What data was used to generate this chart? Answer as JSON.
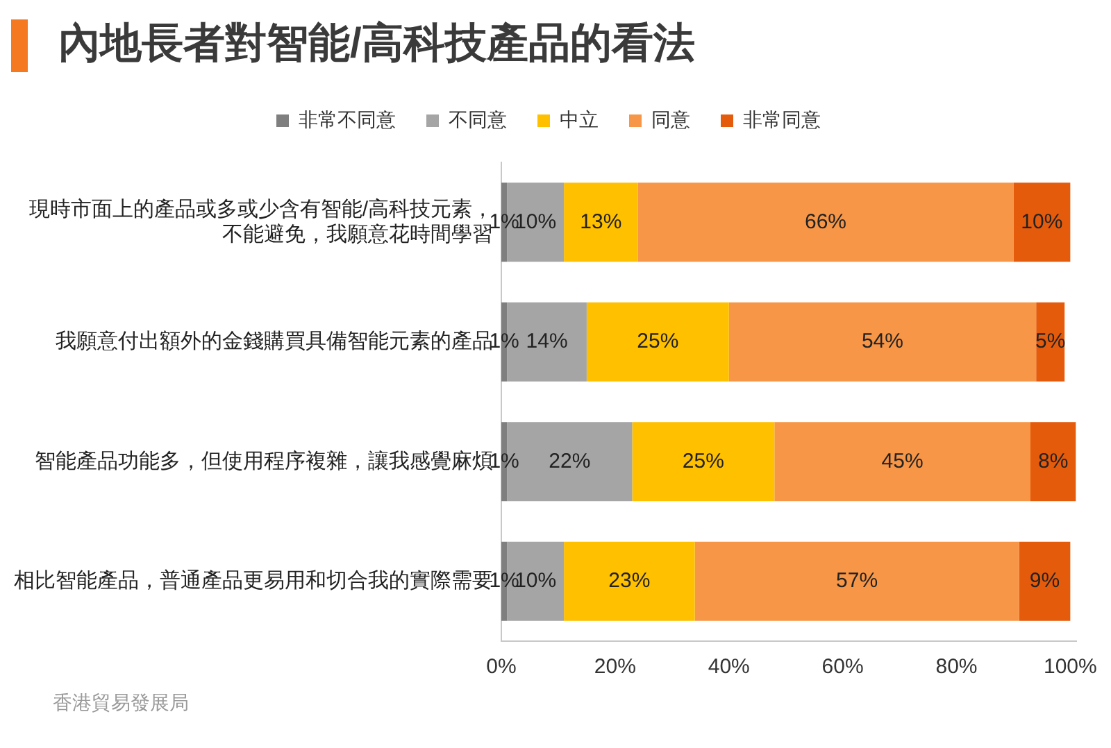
{
  "chart_data": {
    "type": "bar",
    "orientation": "horizontal",
    "stacked": true,
    "title": "內地長者對智能/高科技產品的看法",
    "categories": [
      "現時市面上的產品或多或少含有智能/高科技元素，不能避免，我願意花時間學習",
      "我願意付出額外的金錢購買具備智能元素的產品",
      "智能產品功能多，但使用程序複雜，讓我感覺麻煩",
      "相比智能產品，普通產品更易用和切合我的實際需要"
    ],
    "series": [
      {
        "name": "非常不同意",
        "color": "#7f7f7f",
        "values": [
          1,
          1,
          1,
          1
        ],
        "value_labels": [
          "1%",
          "1%",
          "1%",
          "1%"
        ]
      },
      {
        "name": "不同意",
        "color": "#a5a5a5",
        "values": [
          10,
          14,
          22,
          10
        ],
        "value_labels": [
          "10%",
          "14%",
          "22%",
          "10%"
        ]
      },
      {
        "name": "中立",
        "color": "#ffc000",
        "values": [
          13,
          25,
          25,
          23
        ],
        "value_labels": [
          "13%",
          "25%",
          "25%",
          "23%"
        ]
      },
      {
        "name": "同意",
        "color": "#f79646",
        "values": [
          66,
          54,
          45,
          57
        ],
        "value_labels": [
          "66%",
          "54%",
          "45%",
          "57%"
        ]
      },
      {
        "name": "非常同意",
        "color": "#e55b0c",
        "values": [
          10,
          5,
          8,
          9
        ],
        "value_labels": [
          "10%",
          "5%",
          "8%",
          "9%"
        ]
      }
    ],
    "xlim": [
      0,
      101
    ],
    "xticks": [
      {
        "value": 0,
        "label": "0%"
      },
      {
        "value": 20,
        "label": "20%"
      },
      {
        "value": 40,
        "label": "40%"
      },
      {
        "value": 60,
        "label": "60%"
      },
      {
        "value": 80,
        "label": "80%"
      },
      {
        "value": 100,
        "label": "100%"
      }
    ],
    "grid": false,
    "legend": "top",
    "annotations": [
      "香港貿易發展局"
    ]
  }
}
